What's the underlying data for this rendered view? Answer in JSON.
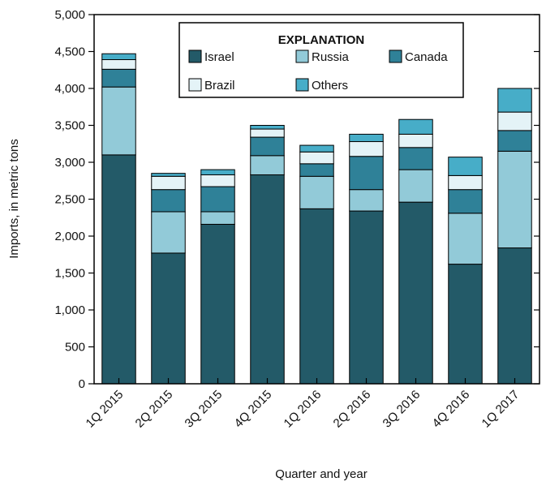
{
  "chart_data": {
    "type": "bar",
    "stacked": true,
    "title": "",
    "xlabel": "Quarter and year",
    "ylabel": "Imports, in metric tons",
    "ylim": [
      0,
      5000
    ],
    "yticks": [
      "0",
      "500",
      "1,000",
      "1,500",
      "2,000",
      "2,500",
      "3,000",
      "3,500",
      "4,000",
      "4,500",
      "5,000"
    ],
    "categories": [
      "1Q 2015",
      "2Q 2015",
      "3Q 2015",
      "4Q 2015",
      "1Q 2016",
      "2Q 2016",
      "3Q 2016",
      "4Q 2016",
      "1Q 2017"
    ],
    "grid": false,
    "legend": {
      "title": "EXPLANATION",
      "placement": "top-center"
    },
    "series": [
      {
        "name": "Israel",
        "color": "#235a68",
        "values": [
          3100,
          1770,
          2160,
          2830,
          2370,
          2340,
          2460,
          1620,
          1840
        ]
      },
      {
        "name": "Russia",
        "color": "#92cad8",
        "values": [
          920,
          560,
          170,
          260,
          440,
          290,
          440,
          690,
          1310
        ]
      },
      {
        "name": "Canada",
        "color": "#2f8198",
        "values": [
          240,
          300,
          340,
          250,
          170,
          450,
          300,
          320,
          280
        ]
      },
      {
        "name": "Brazil",
        "color": "#e4f3f7",
        "values": [
          130,
          180,
          160,
          110,
          160,
          200,
          180,
          190,
          250
        ]
      },
      {
        "name": "Others",
        "color": "#47adc8",
        "values": [
          80,
          40,
          70,
          50,
          90,
          100,
          200,
          250,
          320
        ]
      }
    ]
  }
}
